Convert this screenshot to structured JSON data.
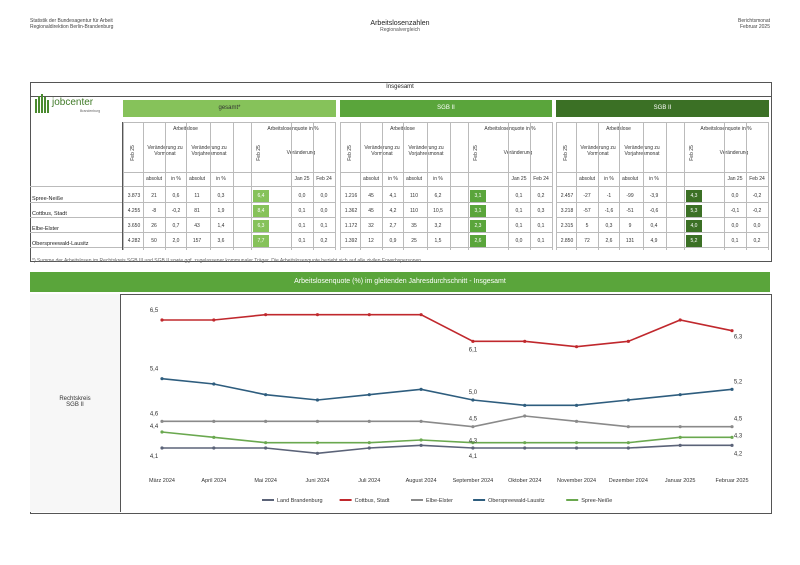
{
  "header": {
    "left_line1": "Statistik der Bundesagentur für Arbeit",
    "left_line2": "Regionaldirektion Berlin-Brandenburg",
    "title": "Arbeitslosenzahlen",
    "subtitle": "Regionalvergleich",
    "right_line1": "Berichtsmonat",
    "right_line2": "Februar 2025"
  },
  "logo": {
    "text": "jobcenter",
    "sub": "Brandenburg"
  },
  "table": {
    "section_title": "Insgesamt",
    "bands": [
      "gesamt*",
      "SGB II",
      "SGB II"
    ],
    "subheaders": {
      "arbeitslose": "Arbeitslose",
      "quote": "Arbeitslosenquote in %",
      "feb25": "Feb 25",
      "veraenderung": "Veränderung",
      "vormonat": "Veränderung zu Vormonat",
      "vorjahr": "Veränderung zu Vorjahresmonat",
      "absolut": "absolut",
      "inpct": "in %",
      "jan25": "Jan 25",
      "feb24": "Feb 24"
    },
    "rows": [
      {
        "label": "Spree-Neiße",
        "g": [
          "3.873",
          "21",
          "0,6",
          "11",
          "0,3",
          "6,4",
          "0,0",
          "0,0"
        ],
        "s1": [
          "1.216",
          "45",
          "4,1",
          "110",
          "6,2",
          "3,1",
          "0,1",
          "0,2"
        ],
        "s2": [
          "2.457",
          "-27",
          "-1",
          "-99",
          "-3,9",
          "4,3",
          "0,0",
          "-0,2"
        ]
      },
      {
        "label": "Cottbus, Stadt",
        "g": [
          "4.255",
          "-8",
          "-0,2",
          "81",
          "1,9",
          "8,4",
          "0,1",
          "0,0"
        ],
        "s1": [
          "1.362",
          "45",
          "4,2",
          "110",
          "10,5",
          "3,1",
          "0,1",
          "0,3"
        ],
        "s2": [
          "3.218",
          "-57",
          "-1,6",
          "-51",
          "-0,6",
          "5,3",
          "-0,1",
          "-0,2"
        ]
      },
      {
        "label": "Elbe-Elster",
        "g": [
          "3.650",
          "26",
          "0,7",
          "43",
          "1,4",
          "6,3",
          "0,1",
          "0,1"
        ],
        "s1": [
          "1.172",
          "32",
          "2,7",
          "35",
          "3,2",
          "2,3",
          "0,1",
          "0,1"
        ],
        "s2": [
          "2.315",
          "5",
          "0,3",
          "9",
          "0,4",
          "4,0",
          "0,0",
          "0,0"
        ]
      },
      {
        "label": "Oberspreewald-Lausitz",
        "g": [
          "4.282",
          "50",
          "2,0",
          "157",
          "3,6",
          "7,7",
          "0,1",
          "0,2"
        ],
        "s1": [
          "1.392",
          "12",
          "0,9",
          "25",
          "1,5",
          "2,6",
          "0,0",
          "0,1"
        ],
        "s2": [
          "2.850",
          "72",
          "2,6",
          "131",
          "4,9",
          "5,2",
          "0,1",
          "0,2"
        ]
      }
    ],
    "footnote": "*) Summe der Arbeitslosen im Rechtskreis SGB III und SGB II sowie ggf. zugelassener kommunaler Träger. Die Arbeitslosenquote bezieht sich auf alle zivilen Erwerbspersonen."
  },
  "sidebar": {
    "label_line1": "Rechtskreis",
    "label_line2": "SGB II"
  },
  "chart_data": {
    "type": "line",
    "title": "Arbeitslosenquote (%) im gleitenden Jahresdurchschnitt - Insgesamt",
    "categories": [
      "März 2024",
      "April 2024",
      "Mai 2024",
      "Juni 2024",
      "Juli 2024",
      "August 2024",
      "September 2024",
      "Oktober 2024",
      "November 2024",
      "Dezember 2024",
      "Januar 2025",
      "Februar 2025"
    ],
    "series": [
      {
        "name": "Land Brandenburg",
        "color": "#5b6378",
        "values": [
          4.1,
          4.1,
          4.1,
          4.0,
          4.1,
          4.15,
          4.1,
          4.1,
          4.1,
          4.1,
          4.15,
          4.15
        ]
      },
      {
        "name": "Cottbus, Stadt",
        "color": "#c0282d",
        "values": [
          6.5,
          6.5,
          6.6,
          6.6,
          6.6,
          6.6,
          6.1,
          6.1,
          6.0,
          6.1,
          6.5,
          6.3
        ]
      },
      {
        "name": "Elbe-Elster",
        "color": "#8a8a8a",
        "values": [
          4.6,
          4.6,
          4.6,
          4.6,
          4.6,
          4.6,
          4.5,
          4.7,
          4.6,
          4.5,
          4.5,
          4.5
        ]
      },
      {
        "name": "Oberspreewald-Lausitz",
        "color": "#2e5d7e",
        "values": [
          5.4,
          5.3,
          5.1,
          5.0,
          5.1,
          5.2,
          5.0,
          4.9,
          4.9,
          5.0,
          5.1,
          5.2
        ]
      },
      {
        "name": "Spree-Neiße",
        "color": "#6aa84f",
        "values": [
          4.4,
          4.3,
          4.2,
          4.2,
          4.2,
          4.25,
          4.2,
          4.2,
          4.2,
          4.2,
          4.3,
          4.3
        ]
      }
    ],
    "labels": [
      "6,5",
      "6,3",
      "6,1",
      "5,4",
      "5,2",
      "5,0",
      "4,6",
      "4,5",
      "4,5",
      "4,4",
      "4,3",
      "4,3",
      "4,1",
      "4,1",
      "4,2"
    ],
    "ylim": [
      3.8,
      6.8
    ]
  }
}
